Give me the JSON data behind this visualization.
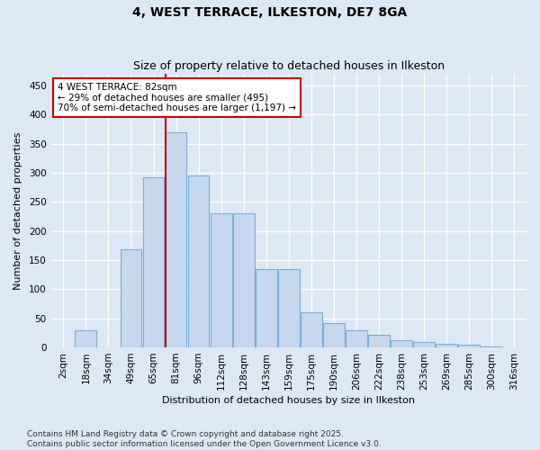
{
  "title1": "4, WEST TERRACE, ILKESTON, DE7 8GA",
  "title2": "Size of property relative to detached houses in Ilkeston",
  "xlabel": "Distribution of detached houses by size in Ilkeston",
  "ylabel": "Number of detached properties",
  "categories": [
    "2sqm",
    "18sqm",
    "34sqm",
    "49sqm",
    "65sqm",
    "81sqm",
    "96sqm",
    "112sqm",
    "128sqm",
    "143sqm",
    "159sqm",
    "175sqm",
    "190sqm",
    "206sqm",
    "222sqm",
    "238sqm",
    "253sqm",
    "269sqm",
    "285sqm",
    "300sqm",
    "316sqm"
  ],
  "bar_heights": [
    0,
    30,
    0,
    168,
    293,
    370,
    295,
    230,
    230,
    135,
    135,
    60,
    42,
    30,
    22,
    12,
    10,
    7,
    4,
    2,
    0
  ],
  "bar_color": "#c5d8ee",
  "bar_edge_color": "#7aafd4",
  "vline_color": "#cc0000",
  "vline_index": 5,
  "annotation_text": "4 WEST TERRACE: 82sqm\n← 29% of detached houses are smaller (495)\n70% of semi-detached houses are larger (1,197) →",
  "annotation_box_facecolor": "#ffffff",
  "annotation_box_edgecolor": "#cc0000",
  "ylim": [
    0,
    470
  ],
  "yticks": [
    0,
    50,
    100,
    150,
    200,
    250,
    300,
    350,
    400,
    450
  ],
  "background_color": "#dde8f5",
  "grid_color": "#ffffff",
  "footer": "Contains HM Land Registry data © Crown copyright and database right 2025.\nContains public sector information licensed under the Open Government Licence v3.0.",
  "title1_fontsize": 10,
  "title2_fontsize": 9,
  "axis_label_fontsize": 8,
  "tick_fontsize": 7.5,
  "annotation_fontsize": 7.5,
  "footer_fontsize": 6.5
}
